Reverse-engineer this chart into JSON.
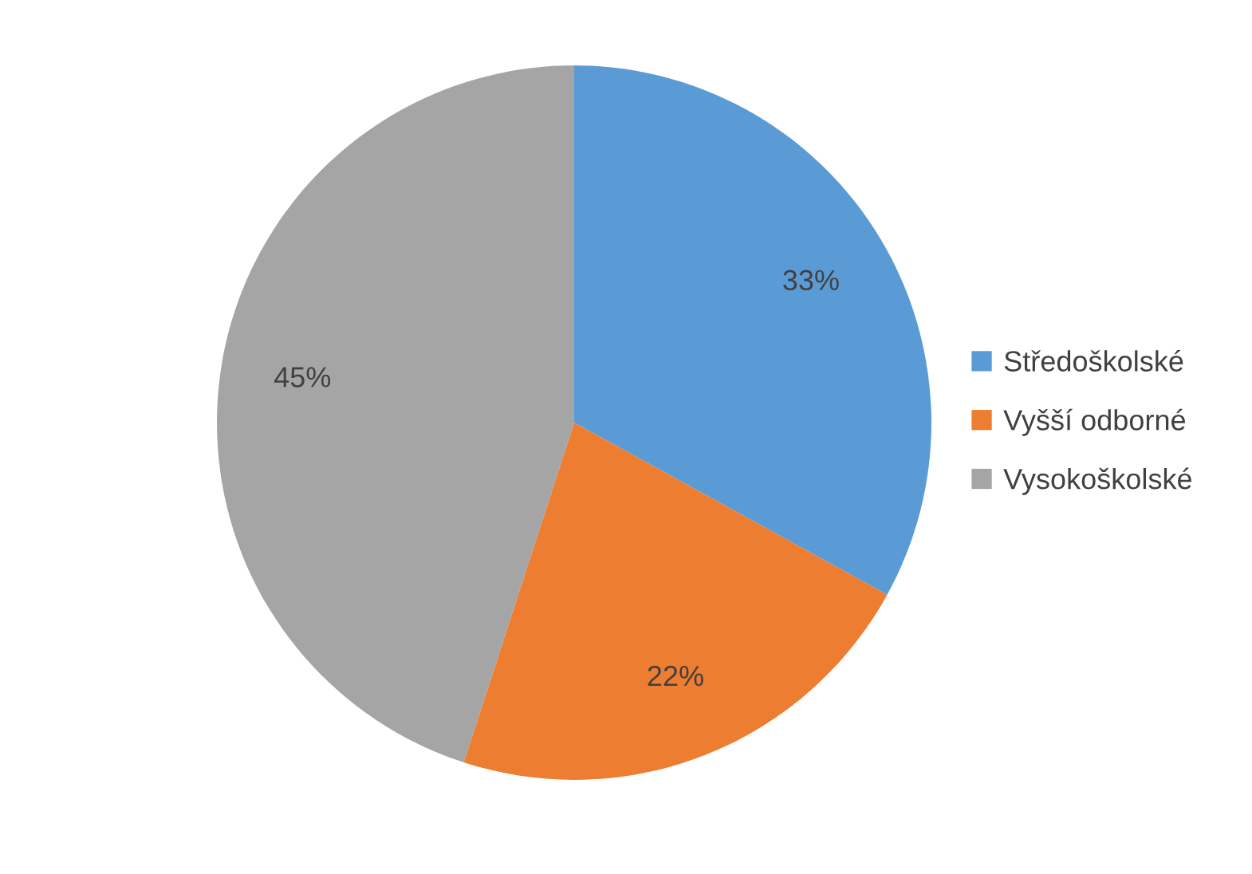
{
  "chart_data": {
    "type": "pie",
    "categories": [
      "Středoškolské",
      "Vyšší odborné",
      "Vysokoškolské"
    ],
    "values": [
      33,
      22,
      45
    ],
    "colors": [
      "#5b9bd5",
      "#ed7d31",
      "#a5a5a5"
    ],
    "value_labels": [
      "33%",
      "22%",
      "45%"
    ],
    "legend": "right"
  }
}
